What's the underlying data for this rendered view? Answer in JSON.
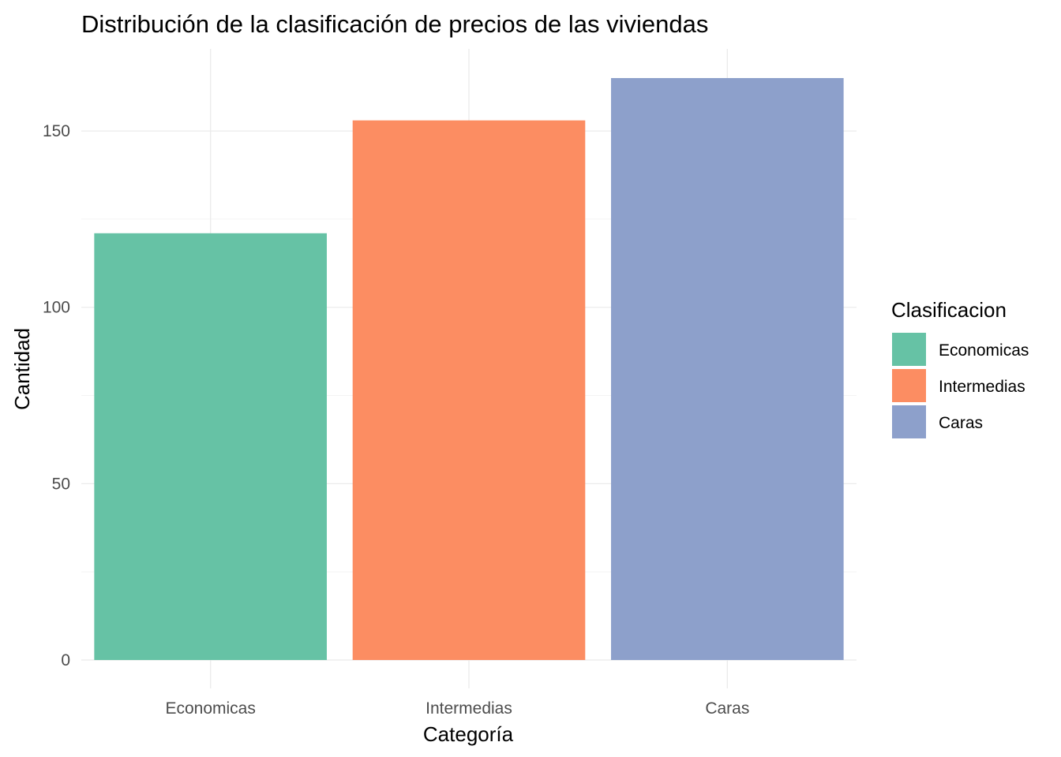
{
  "chart_data": {
    "type": "bar",
    "title": "Distribución de la clasificación de precios de las viviendas",
    "xlabel": "Categoría",
    "ylabel": "Cantidad",
    "categories": [
      "Economicas",
      "Intermedias",
      "Caras"
    ],
    "values": [
      121,
      153,
      165
    ],
    "colors": [
      "#66c2a5",
      "#fc8d62",
      "#8da0cb"
    ],
    "ylim": [
      0,
      172
    ],
    "yticks": [
      0,
      50,
      100,
      150
    ],
    "grid": true,
    "legend": {
      "title": "Clasificacion",
      "placement": "right",
      "items": [
        "Economicas",
        "Intermedias",
        "Caras"
      ]
    }
  }
}
